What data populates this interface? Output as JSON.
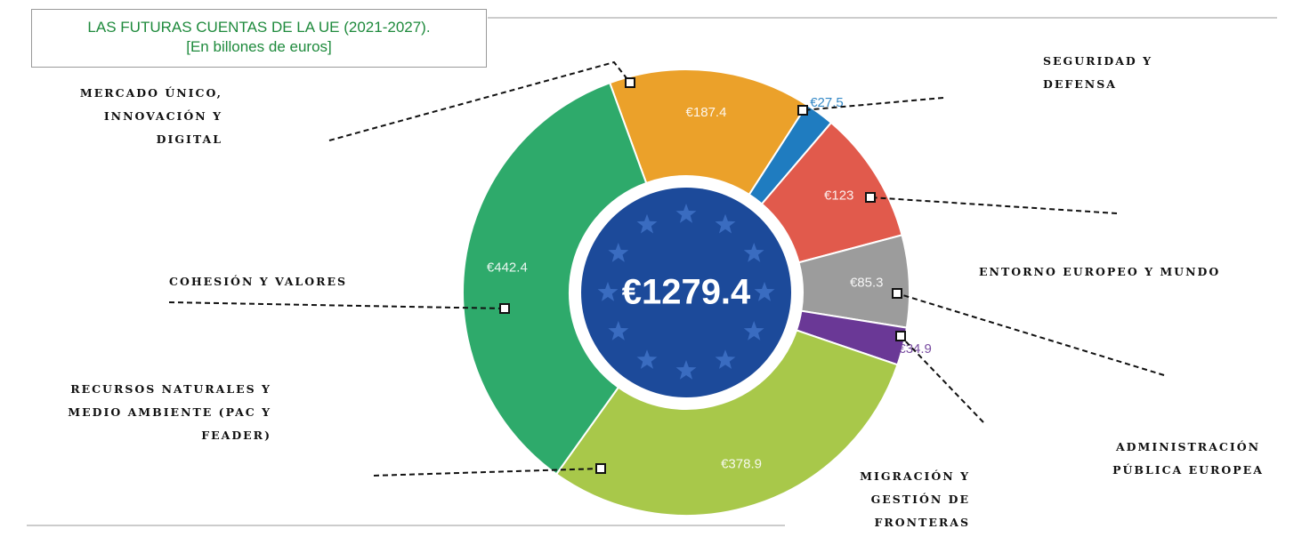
{
  "chart_data": {
    "type": "pie",
    "title": "LAS FUTURAS CUENTAS DE LA UE (2021-2027).",
    "subtitle": "[En billones de euros]",
    "center_label": "€1279.4",
    "categories": [
      "MERCADO ÚNICO, INNOVACIÓN Y DIGITAL",
      "SEGURIDAD Y DEFENSA",
      "ENTORNO EUROPEO Y MUNDO",
      "ADMINISTRACIÓN PÚBLICA EUROPEA",
      "MIGRACIÓN Y GESTIÓN DE FRONTERAS",
      "RECURSOS NATURALES Y MEDIO AMBIENTE (PAC Y FEADER)",
      "COHESIÓN Y VALORES"
    ],
    "values": [
      187.4,
      27.5,
      123,
      85.3,
      34.9,
      378.9,
      442.4
    ],
    "value_labels": [
      "€187.4",
      "€27.5",
      "€123",
      "€85.3",
      "€34.9",
      "€378.9",
      "€442.4"
    ],
    "colors": [
      "#eba12a",
      "#1f7cc0",
      "#e15a4c",
      "#9c9c9c",
      "#6a3896",
      "#a8c84a",
      "#2eaa6b"
    ]
  }
}
